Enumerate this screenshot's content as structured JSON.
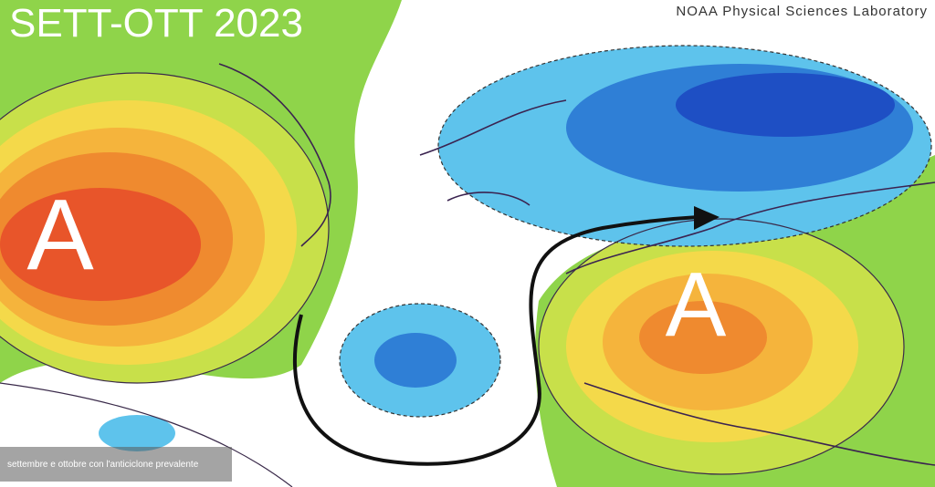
{
  "title": "SETT-OTT 2023",
  "credit": "NOAA Physical Sciences Laboratory",
  "pressure_labels": [
    "A",
    "A"
  ],
  "caption": "settembre e ottobre con l'anticiclone prevalente"
}
